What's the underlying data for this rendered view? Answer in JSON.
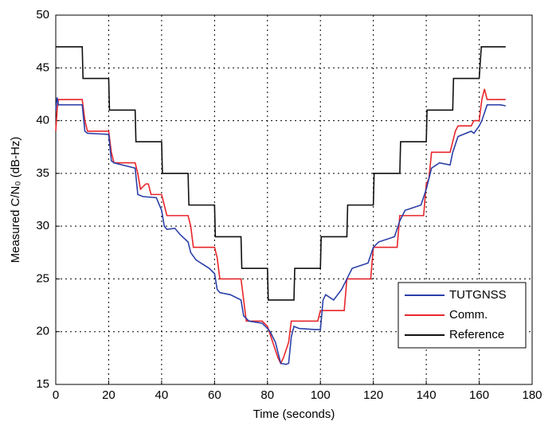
{
  "chart_data": {
    "type": "line",
    "xlabel": "Time (seconds)",
    "ylabel": "Measured C/N₀ (dB-Hz)",
    "xlim": [
      0,
      180
    ],
    "xticks": [
      0,
      20,
      40,
      60,
      80,
      100,
      120,
      140,
      160,
      180
    ],
    "ylim": [
      15,
      50
    ],
    "yticks": [
      15,
      20,
      25,
      30,
      35,
      40,
      45,
      50
    ],
    "grid": true,
    "legend": "lower right",
    "series": [
      {
        "name": "TUTGNSS",
        "color": "#2b3fa8",
        "x": [
          0,
          0.5,
          1,
          2,
          10,
          11,
          12,
          20,
          21,
          22,
          30,
          31,
          33,
          38,
          40,
          41,
          42,
          45,
          47,
          50,
          51,
          53,
          58,
          60,
          61,
          62,
          66,
          70,
          71,
          73,
          78,
          80,
          81,
          83,
          85,
          87,
          88,
          89,
          90,
          92,
          98,
          100,
          101,
          102,
          105,
          108,
          110,
          112,
          118,
          120,
          122,
          128,
          130,
          132,
          138,
          140,
          142,
          145,
          149,
          150,
          152,
          157,
          158,
          160,
          161,
          163,
          168,
          170
        ],
        "values": [
          41,
          42.2,
          41.5,
          41.5,
          41.5,
          39,
          38.8,
          38.7,
          36.2,
          36,
          35.5,
          33,
          32.8,
          32.7,
          31.5,
          30,
          29.7,
          29.8,
          29.2,
          28.5,
          27.5,
          26.8,
          26,
          25.5,
          24,
          23.7,
          23.5,
          23,
          21.5,
          21,
          20.8,
          20.3,
          20,
          19,
          17,
          16.9,
          17,
          19.5,
          20.5,
          20.3,
          20.2,
          20.2,
          23,
          23.5,
          23,
          24,
          25,
          26,
          26.5,
          28,
          28.5,
          29,
          30.5,
          31.5,
          32,
          33.5,
          35.5,
          36,
          35.8,
          37,
          38.5,
          39,
          38.8,
          39.5,
          40,
          41.5,
          41.5,
          41.4
        ]
      },
      {
        "name": "Comm.",
        "color": "#e8262b",
        "x": [
          0,
          0.5,
          1,
          10,
          11,
          12,
          20,
          21,
          22,
          30,
          31,
          32,
          34,
          35,
          36,
          40,
          41,
          42,
          50,
          51,
          52,
          60,
          61,
          62,
          70,
          71,
          72,
          74,
          78,
          80,
          82,
          84,
          85,
          86,
          88,
          89,
          90,
          99,
          100,
          109,
          110,
          119,
          120,
          129,
          130,
          139,
          140,
          141,
          142,
          149,
          150,
          151,
          152,
          157,
          158,
          160,
          161,
          162,
          163,
          170
        ],
        "values": [
          39,
          41,
          42,
          42,
          40,
          39,
          39,
          37,
          36,
          36,
          35,
          33.5,
          34,
          34,
          33,
          33,
          32,
          31,
          31,
          30,
          28,
          28,
          27,
          25,
          25,
          23,
          21,
          21,
          21,
          20.5,
          19,
          17.5,
          17,
          17.5,
          19,
          21,
          21,
          21,
          22,
          22,
          25,
          25,
          28,
          28,
          31,
          31,
          34,
          34.5,
          37,
          37,
          38,
          39,
          39.5,
          39.5,
          40,
          40,
          42,
          43,
          42,
          42
        ]
      },
      {
        "name": "Reference",
        "color": "#111111",
        "x": [
          0,
          10,
          10.3,
          20,
          20.3,
          30,
          30.3,
          40,
          40.3,
          50,
          50.3,
          60,
          60.3,
          70,
          70.3,
          80,
          80.3,
          90,
          90.3,
          100,
          100.3,
          110,
          110.3,
          120,
          120.3,
          130,
          130.3,
          140,
          140.3,
          150,
          150.3,
          160,
          160.8,
          170
        ],
        "values": [
          47,
          47,
          44,
          44,
          41,
          41,
          38,
          38,
          35,
          35,
          32,
          32,
          29,
          29,
          26,
          26,
          23,
          23,
          26,
          26,
          29,
          29,
          32,
          32,
          35,
          35,
          38,
          38,
          41,
          41,
          44,
          44,
          47,
          47
        ]
      }
    ]
  }
}
